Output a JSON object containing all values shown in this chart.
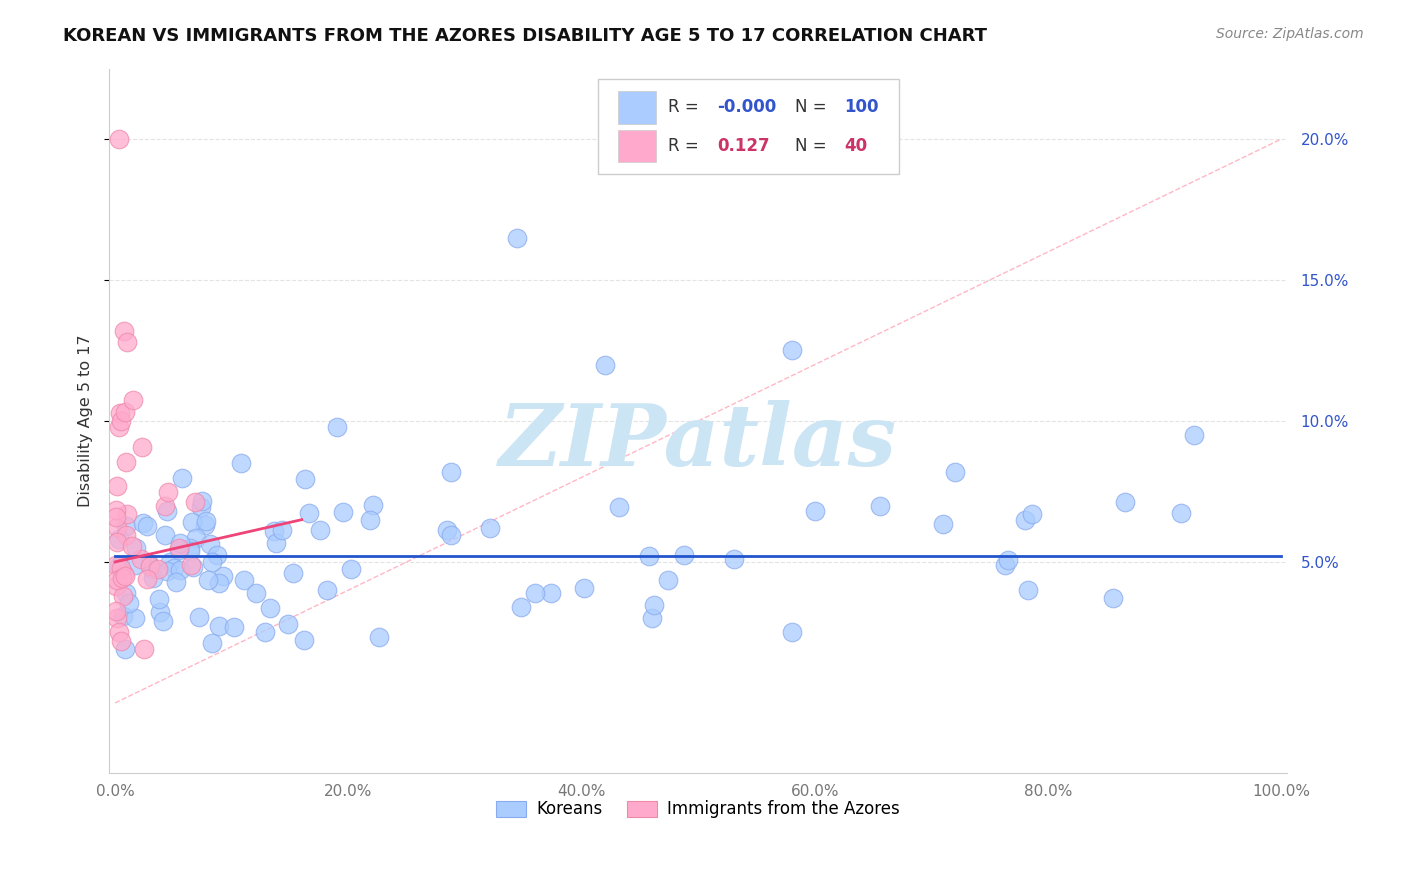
{
  "title": "KOREAN VS IMMIGRANTS FROM THE AZORES DISABILITY AGE 5 TO 17 CORRELATION CHART",
  "source": "Source: ZipAtlas.com",
  "ylabel": "Disability Age 5 to 17",
  "xlim": [
    -0.005,
    1.005
  ],
  "ylim": [
    -0.025,
    0.225
  ],
  "yticks": [
    0.05,
    0.1,
    0.15,
    0.2
  ],
  "ytick_labels_right": [
    "5.0%",
    "10.0%",
    "15.0%",
    "20.0%"
  ],
  "xticks": [
    0.0,
    0.2,
    0.4,
    0.6,
    0.8,
    1.0
  ],
  "xtick_labels": [
    "0.0%",
    "20.0%",
    "40.0%",
    "60.0%",
    "80.0%",
    "100.0%"
  ],
  "korean_color": "#aaccff",
  "korean_edge": "#88aaee",
  "azores_color": "#ffaacc",
  "azores_edge": "#ee88aa",
  "korean_trend_color": "#2255cc",
  "azores_trend_color": "#ee4477",
  "diagonal_color": "#ffaabb",
  "grid_color": "#dddddd",
  "watermark_color": "#cce5f5",
  "background": "#ffffff",
  "title_color": "#111111",
  "source_color": "#888888",
  "tick_color": "#777777",
  "legend_border": "#cccccc",
  "r_korean_color": "#3355cc",
  "r_azores_color": "#cc3366",
  "korean_R_text": "-0.000",
  "azores_R_text": "0.127",
  "korean_N_text": "100",
  "azores_N_text": "40",
  "korean_trend_y": 0.052,
  "azores_trend_x0": 0.0,
  "azores_trend_x1": 0.16,
  "azores_trend_y0": 0.05,
  "azores_trend_y1": 0.065
}
